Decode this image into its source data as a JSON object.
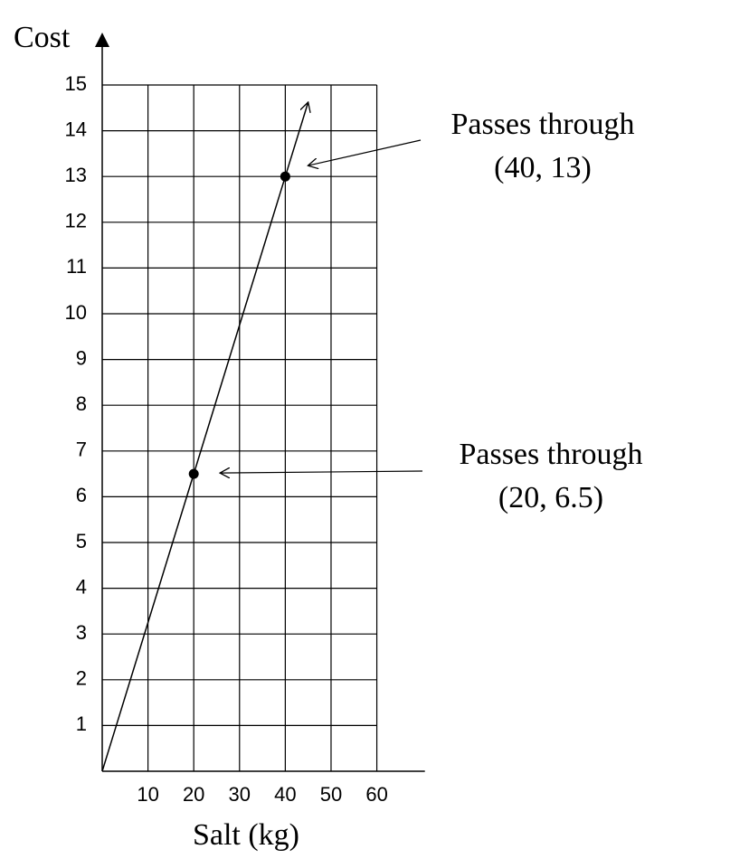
{
  "chart_data": {
    "type": "line",
    "x_label": "Salt (kg)",
    "y_label": "Cost",
    "x": [
      0,
      20,
      40,
      45
    ],
    "values": [
      0,
      6.5,
      13,
      14.625
    ],
    "color": "#000000",
    "points": {
      "x": [
        20,
        40
      ],
      "values": [
        6.5,
        13
      ]
    },
    "annotations": [
      {
        "text": [
          "Passes through",
          "(40, 13)"
        ],
        "x": 40,
        "y": 13
      },
      {
        "text": [
          "Passes through",
          "(20, 6.5)"
        ],
        "x": 20,
        "y": 6.5
      }
    ],
    "xlim": [
      0,
      70.5
    ],
    "ylim": [
      0,
      16
    ],
    "xticks": [
      10,
      20,
      30,
      40,
      50,
      60
    ],
    "yticks": [
      1,
      2,
      3,
      4,
      5,
      6,
      7,
      8,
      9,
      10,
      11,
      12,
      13,
      14,
      15
    ],
    "grid": true
  }
}
